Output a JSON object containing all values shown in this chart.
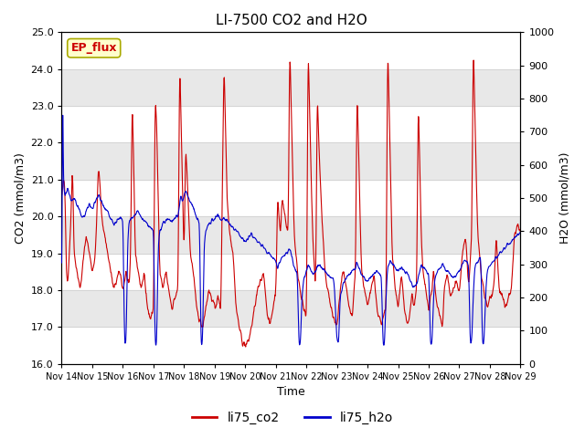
{
  "title": "LI-7500 CO2 and H2O",
  "xlabel": "Time",
  "ylabel_left": "CO2 (mmol/m3)",
  "ylabel_right": "H2O (mmol/m3)",
  "ylim_left": [
    16.0,
    25.0
  ],
  "ylim_right": [
    0,
    1000
  ],
  "yticks_left": [
    16.0,
    17.0,
    18.0,
    19.0,
    20.0,
    21.0,
    22.0,
    23.0,
    24.0,
    25.0
  ],
  "yticks_right": [
    0,
    100,
    200,
    300,
    400,
    500,
    600,
    700,
    800,
    900,
    1000
  ],
  "xtick_labels": [
    "Nov 14",
    "Nov 15",
    "Nov 16",
    "Nov 17",
    "Nov 18",
    "Nov 19",
    "Nov 20",
    "Nov 21",
    "Nov 22",
    "Nov 23",
    "Nov 24",
    "Nov 25",
    "Nov 26",
    "Nov 27",
    "Nov 28",
    "Nov 29"
  ],
  "n_days": 15,
  "color_co2": "#cc0000",
  "color_h2o": "#0000cc",
  "legend_entries": [
    "li75_co2",
    "li75_h2o"
  ],
  "watermark_text": "EP_flux",
  "watermark_color": "#cc0000",
  "watermark_bg": "#ffffcc",
  "plot_bg": "#ffffff",
  "band_color": "#e8e8e8",
  "grid_color": "#cccccc",
  "title_fontsize": 11,
  "label_fontsize": 9,
  "tick_fontsize": 8,
  "legend_fontsize": 10,
  "co2_keypoints": [
    [
      0.0,
      20.5
    ],
    [
      0.05,
      21.0
    ],
    [
      0.1,
      20.8
    ],
    [
      0.15,
      18.5
    ],
    [
      0.2,
      18.2
    ],
    [
      0.3,
      20.0
    ],
    [
      0.35,
      21.5
    ],
    [
      0.4,
      19.0
    ],
    [
      0.5,
      18.5
    ],
    [
      0.6,
      18.0
    ],
    [
      0.7,
      18.8
    ],
    [
      0.8,
      19.5
    ],
    [
      0.9,
      19.0
    ],
    [
      1.0,
      18.5
    ],
    [
      1.1,
      19.0
    ],
    [
      1.2,
      21.4
    ],
    [
      1.25,
      20.8
    ],
    [
      1.3,
      20.0
    ],
    [
      1.4,
      19.5
    ],
    [
      1.5,
      19.0
    ],
    [
      1.6,
      18.5
    ],
    [
      1.7,
      18.0
    ],
    [
      1.8,
      18.3
    ],
    [
      1.9,
      18.5
    ],
    [
      2.0,
      18.0
    ],
    [
      2.1,
      18.5
    ],
    [
      2.2,
      18.0
    ],
    [
      2.25,
      19.0
    ],
    [
      2.3,
      23.3
    ],
    [
      2.35,
      21.5
    ],
    [
      2.4,
      19.0
    ],
    [
      2.5,
      18.5
    ],
    [
      2.6,
      18.0
    ],
    [
      2.7,
      18.5
    ],
    [
      2.8,
      17.5
    ],
    [
      2.9,
      17.2
    ],
    [
      3.0,
      17.5
    ],
    [
      3.05,
      23.3
    ],
    [
      3.1,
      22.5
    ],
    [
      3.15,
      20.5
    ],
    [
      3.2,
      18.5
    ],
    [
      3.3,
      18.0
    ],
    [
      3.4,
      18.5
    ],
    [
      3.5,
      18.0
    ],
    [
      3.6,
      17.5
    ],
    [
      3.7,
      17.8
    ],
    [
      3.8,
      18.0
    ],
    [
      3.85,
      24.3
    ],
    [
      3.9,
      22.5
    ],
    [
      3.95,
      20.5
    ],
    [
      4.0,
      19.0
    ],
    [
      4.05,
      22.0
    ],
    [
      4.1,
      21.0
    ],
    [
      4.15,
      20.0
    ],
    [
      4.2,
      19.0
    ],
    [
      4.3,
      18.5
    ],
    [
      4.4,
      17.5
    ],
    [
      4.5,
      17.2
    ],
    [
      4.6,
      17.0
    ],
    [
      4.7,
      17.5
    ],
    [
      4.8,
      18.0
    ],
    [
      4.9,
      17.8
    ],
    [
      5.0,
      17.5
    ],
    [
      5.1,
      17.8
    ],
    [
      5.2,
      17.5
    ],
    [
      5.3,
      24.3
    ],
    [
      5.35,
      22.5
    ],
    [
      5.4,
      20.5
    ],
    [
      5.5,
      19.5
    ],
    [
      5.6,
      19.0
    ],
    [
      5.7,
      17.5
    ],
    [
      5.8,
      17.0
    ],
    [
      5.9,
      16.6
    ],
    [
      6.0,
      16.5
    ],
    [
      6.1,
      16.6
    ],
    [
      6.2,
      17.0
    ],
    [
      6.3,
      17.5
    ],
    [
      6.4,
      18.0
    ],
    [
      6.5,
      18.2
    ],
    [
      6.6,
      18.5
    ],
    [
      6.7,
      17.5
    ],
    [
      6.8,
      17.0
    ],
    [
      6.9,
      17.5
    ],
    [
      7.0,
      18.0
    ],
    [
      7.05,
      20.5
    ],
    [
      7.1,
      20.0
    ],
    [
      7.15,
      19.5
    ],
    [
      7.2,
      20.5
    ],
    [
      7.3,
      20.0
    ],
    [
      7.4,
      19.5
    ],
    [
      7.45,
      24.7
    ],
    [
      7.5,
      23.0
    ],
    [
      7.55,
      21.0
    ],
    [
      7.6,
      19.5
    ],
    [
      7.7,
      18.5
    ],
    [
      7.8,
      18.0
    ],
    [
      7.9,
      17.5
    ],
    [
      8.0,
      17.2
    ],
    [
      8.05,
      24.7
    ],
    [
      8.1,
      23.0
    ],
    [
      8.15,
      21.0
    ],
    [
      8.2,
      19.5
    ],
    [
      8.3,
      18.0
    ],
    [
      8.35,
      23.5
    ],
    [
      8.4,
      22.0
    ],
    [
      8.5,
      20.0
    ],
    [
      8.6,
      18.5
    ],
    [
      8.7,
      18.0
    ],
    [
      8.8,
      17.5
    ],
    [
      8.9,
      17.2
    ],
    [
      9.0,
      17.0
    ],
    [
      9.05,
      17.5
    ],
    [
      9.1,
      18.0
    ],
    [
      9.2,
      18.5
    ],
    [
      9.3,
      18.0
    ],
    [
      9.4,
      17.5
    ],
    [
      9.5,
      17.2
    ],
    [
      9.55,
      18.0
    ],
    [
      9.6,
      18.5
    ],
    [
      9.65,
      23.5
    ],
    [
      9.7,
      22.0
    ],
    [
      9.75,
      20.0
    ],
    [
      9.8,
      18.5
    ],
    [
      9.9,
      18.0
    ],
    [
      10.0,
      17.5
    ],
    [
      10.1,
      18.0
    ],
    [
      10.2,
      18.5
    ],
    [
      10.3,
      17.5
    ],
    [
      10.4,
      17.2
    ],
    [
      10.45,
      17.0
    ],
    [
      10.5,
      17.2
    ],
    [
      10.6,
      17.5
    ],
    [
      10.65,
      24.7
    ],
    [
      10.7,
      23.0
    ],
    [
      10.75,
      21.0
    ],
    [
      10.8,
      19.0
    ],
    [
      10.9,
      18.0
    ],
    [
      11.0,
      17.5
    ],
    [
      11.1,
      18.5
    ],
    [
      11.2,
      17.5
    ],
    [
      11.3,
      17.0
    ],
    [
      11.35,
      17.2
    ],
    [
      11.4,
      17.5
    ],
    [
      11.45,
      18.0
    ],
    [
      11.5,
      17.5
    ],
    [
      11.6,
      18.0
    ],
    [
      11.65,
      23.2
    ],
    [
      11.7,
      21.5
    ],
    [
      11.75,
      19.5
    ],
    [
      11.8,
      18.5
    ],
    [
      11.9,
      18.0
    ],
    [
      12.0,
      17.5
    ],
    [
      12.1,
      18.0
    ],
    [
      12.15,
      18.5
    ],
    [
      12.2,
      18.0
    ],
    [
      12.3,
      17.5
    ],
    [
      12.4,
      17.2
    ],
    [
      12.45,
      17.0
    ],
    [
      12.5,
      18.0
    ],
    [
      12.6,
      18.5
    ],
    [
      12.7,
      17.8
    ],
    [
      12.8,
      18.0
    ],
    [
      12.9,
      18.2
    ],
    [
      13.0,
      18.0
    ],
    [
      13.05,
      18.5
    ],
    [
      13.1,
      19.0
    ],
    [
      13.2,
      19.5
    ],
    [
      13.3,
      18.0
    ],
    [
      13.4,
      19.5
    ],
    [
      13.45,
      24.7
    ],
    [
      13.5,
      23.0
    ],
    [
      13.55,
      21.0
    ],
    [
      13.6,
      19.5
    ],
    [
      13.7,
      18.5
    ],
    [
      13.8,
      18.0
    ],
    [
      13.9,
      17.5
    ],
    [
      14.0,
      17.8
    ],
    [
      14.1,
      18.0
    ],
    [
      14.15,
      18.5
    ],
    [
      14.2,
      19.5
    ],
    [
      14.3,
      18.0
    ],
    [
      14.4,
      17.8
    ],
    [
      14.5,
      17.5
    ],
    [
      14.6,
      17.8
    ],
    [
      14.7,
      18.0
    ],
    [
      14.8,
      19.5
    ],
    [
      14.9,
      19.8
    ],
    [
      15.0,
      19.5
    ]
  ],
  "h2o_keypoints": [
    [
      0.0,
      60
    ],
    [
      0.02,
      980
    ],
    [
      0.05,
      550
    ],
    [
      0.1,
      500
    ],
    [
      0.2,
      530
    ],
    [
      0.3,
      490
    ],
    [
      0.4,
      500
    ],
    [
      0.5,
      480
    ],
    [
      0.6,
      450
    ],
    [
      0.7,
      440
    ],
    [
      0.8,
      460
    ],
    [
      0.9,
      480
    ],
    [
      1.0,
      470
    ],
    [
      1.1,
      490
    ],
    [
      1.2,
      510
    ],
    [
      1.3,
      490
    ],
    [
      1.4,
      470
    ],
    [
      1.5,
      460
    ],
    [
      1.6,
      440
    ],
    [
      1.7,
      420
    ],
    [
      1.8,
      430
    ],
    [
      1.9,
      440
    ],
    [
      2.0,
      430
    ],
    [
      2.05,
      60
    ],
    [
      2.1,
      60
    ],
    [
      2.15,
      350
    ],
    [
      2.2,
      430
    ],
    [
      2.3,
      440
    ],
    [
      2.4,
      450
    ],
    [
      2.5,
      460
    ],
    [
      2.6,
      440
    ],
    [
      2.7,
      430
    ],
    [
      2.8,
      420
    ],
    [
      2.9,
      410
    ],
    [
      3.0,
      400
    ],
    [
      3.05,
      60
    ],
    [
      3.1,
      60
    ],
    [
      3.15,
      350
    ],
    [
      3.2,
      400
    ],
    [
      3.3,
      420
    ],
    [
      3.4,
      430
    ],
    [
      3.5,
      440
    ],
    [
      3.6,
      430
    ],
    [
      3.7,
      440
    ],
    [
      3.8,
      450
    ],
    [
      3.85,
      480
    ],
    [
      3.9,
      510
    ],
    [
      3.95,
      490
    ],
    [
      4.0,
      510
    ],
    [
      4.05,
      520
    ],
    [
      4.1,
      510
    ],
    [
      4.15,
      500
    ],
    [
      4.2,
      490
    ],
    [
      4.3,
      470
    ],
    [
      4.4,
      440
    ],
    [
      4.5,
      430
    ],
    [
      4.55,
      60
    ],
    [
      4.6,
      60
    ],
    [
      4.65,
      350
    ],
    [
      4.7,
      400
    ],
    [
      4.8,
      420
    ],
    [
      4.9,
      430
    ],
    [
      5.0,
      440
    ],
    [
      5.1,
      450
    ],
    [
      5.2,
      430
    ],
    [
      5.3,
      440
    ],
    [
      5.4,
      430
    ],
    [
      5.5,
      420
    ],
    [
      5.6,
      410
    ],
    [
      5.7,
      400
    ],
    [
      5.8,
      390
    ],
    [
      5.9,
      380
    ],
    [
      6.0,
      370
    ],
    [
      6.1,
      380
    ],
    [
      6.2,
      390
    ],
    [
      6.3,
      380
    ],
    [
      6.4,
      370
    ],
    [
      6.5,
      360
    ],
    [
      6.6,
      350
    ],
    [
      6.7,
      340
    ],
    [
      6.8,
      330
    ],
    [
      6.9,
      320
    ],
    [
      7.0,
      310
    ],
    [
      7.05,
      290
    ],
    [
      7.1,
      300
    ],
    [
      7.15,
      310
    ],
    [
      7.2,
      320
    ],
    [
      7.3,
      330
    ],
    [
      7.4,
      340
    ],
    [
      7.45,
      350
    ],
    [
      7.5,
      330
    ],
    [
      7.55,
      310
    ],
    [
      7.6,
      290
    ],
    [
      7.7,
      270
    ],
    [
      7.75,
      60
    ],
    [
      7.8,
      60
    ],
    [
      7.85,
      200
    ],
    [
      7.9,
      250
    ],
    [
      8.0,
      280
    ],
    [
      8.05,
      300
    ],
    [
      8.1,
      290
    ],
    [
      8.15,
      280
    ],
    [
      8.2,
      270
    ],
    [
      8.3,
      280
    ],
    [
      8.35,
      290
    ],
    [
      8.4,
      300
    ],
    [
      8.5,
      290
    ],
    [
      8.6,
      280
    ],
    [
      8.7,
      270
    ],
    [
      8.8,
      260
    ],
    [
      8.9,
      250
    ],
    [
      9.0,
      60
    ],
    [
      9.05,
      60
    ],
    [
      9.1,
      200
    ],
    [
      9.2,
      240
    ],
    [
      9.3,
      260
    ],
    [
      9.4,
      270
    ],
    [
      9.5,
      280
    ],
    [
      9.6,
      290
    ],
    [
      9.65,
      310
    ],
    [
      9.7,
      290
    ],
    [
      9.75,
      280
    ],
    [
      9.8,
      270
    ],
    [
      9.9,
      260
    ],
    [
      10.0,
      250
    ],
    [
      10.1,
      260
    ],
    [
      10.2,
      270
    ],
    [
      10.3,
      280
    ],
    [
      10.4,
      270
    ],
    [
      10.45,
      260
    ],
    [
      10.5,
      60
    ],
    [
      10.55,
      60
    ],
    [
      10.6,
      200
    ],
    [
      10.65,
      290
    ],
    [
      10.7,
      300
    ],
    [
      10.75,
      310
    ],
    [
      10.8,
      300
    ],
    [
      10.9,
      290
    ],
    [
      11.0,
      280
    ],
    [
      11.1,
      290
    ],
    [
      11.2,
      280
    ],
    [
      11.3,
      270
    ],
    [
      11.35,
      260
    ],
    [
      11.4,
      250
    ],
    [
      11.45,
      240
    ],
    [
      11.5,
      230
    ],
    [
      11.6,
      240
    ],
    [
      11.65,
      260
    ],
    [
      11.7,
      280
    ],
    [
      11.75,
      300
    ],
    [
      11.8,
      290
    ],
    [
      11.9,
      280
    ],
    [
      12.0,
      270
    ],
    [
      12.05,
      60
    ],
    [
      12.1,
      60
    ],
    [
      12.15,
      200
    ],
    [
      12.2,
      260
    ],
    [
      12.3,
      280
    ],
    [
      12.4,
      290
    ],
    [
      12.45,
      300
    ],
    [
      12.5,
      290
    ],
    [
      12.6,
      280
    ],
    [
      12.7,
      270
    ],
    [
      12.8,
      260
    ],
    [
      12.9,
      270
    ],
    [
      13.0,
      280
    ],
    [
      13.05,
      290
    ],
    [
      13.1,
      300
    ],
    [
      13.2,
      310
    ],
    [
      13.3,
      300
    ],
    [
      13.35,
      60
    ],
    [
      13.4,
      60
    ],
    [
      13.45,
      200
    ],
    [
      13.5,
      290
    ],
    [
      13.6,
      310
    ],
    [
      13.7,
      320
    ],
    [
      13.75,
      60
    ],
    [
      13.8,
      60
    ],
    [
      13.85,
      200
    ],
    [
      13.9,
      280
    ],
    [
      14.0,
      300
    ],
    [
      14.1,
      310
    ],
    [
      14.2,
      320
    ],
    [
      14.3,
      330
    ],
    [
      14.4,
      340
    ],
    [
      14.5,
      350
    ],
    [
      14.6,
      360
    ],
    [
      14.7,
      370
    ],
    [
      14.8,
      380
    ],
    [
      14.9,
      390
    ],
    [
      15.0,
      400
    ]
  ]
}
